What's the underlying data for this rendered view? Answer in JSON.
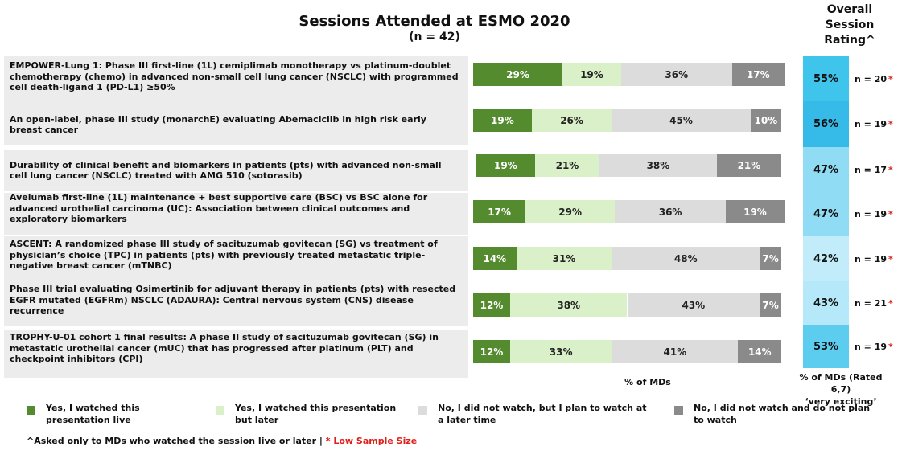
{
  "chart_data": {
    "type": "bar",
    "stacked": true,
    "orientation": "horizontal",
    "title": "Sessions Attended at ESMO 2020",
    "subtitle": "(n = 42)",
    "xlabel": "% of MDs",
    "categories": [
      "EMPOWER-Lung 1: Phase III first-line (1L) cemiplimab monotherapy vs platinum-doublet chemotherapy (chemo) in advanced non-small cell lung cancer (NSCLC) with programmed cell death-ligand 1 (PD-L1) ≥50%",
      "An open-label, phase III study (monarchE) evaluating Abemaciclib in high risk early breast cancer",
      "Durability of clinical benefit and biomarkers in patients (pts) with advanced non-small cell lung cancer (NSCLC) treated with AMG 510 (sotorasib)",
      "Avelumab first-line (1L) maintenance + best supportive care (BSC) vs BSC alone for advanced urothelial carcinoma (UC): Association between clinical outcomes and exploratory biomarkers",
      "ASCENT: A randomized phase III study of sacituzumab govitecan (SG) vs treatment of physician’s choice (TPC) in patients (pts) with previously treated metastatic triple-negative breast cancer (mTNBC)",
      "Phase III trial evaluating Osimertinib for adjuvant therapy in patients (pts) with resected EGFR mutated (EGFRm) NSCLC (ADAURA): Central nervous system (CNS) disease recurrence",
      "TROPHY-U-01 cohort 1 final results: A phase II study of sacituzumab govitecan (SG) in metastatic urothelial cancer (mUC) that has progressed after platinum (PLT) and checkpoint inhibitors (CPI)"
    ],
    "series": [
      {
        "name": "Yes, I watched this presentation live",
        "color": "#558b2f",
        "values": [
          29,
          19,
          19,
          17,
          14,
          12,
          12
        ]
      },
      {
        "name": "Yes, I watched this presentation but later",
        "color": "#d9f0c8",
        "values": [
          19,
          26,
          21,
          29,
          31,
          38,
          33
        ]
      },
      {
        "name": "No, I did not watch, but I plan to watch at a later time",
        "color": "#dcdcdc",
        "values": [
          36,
          45,
          38,
          36,
          48,
          43,
          41
        ]
      },
      {
        "name": "No, I did not watch and do not plan to watch",
        "color": "#8a8a8a",
        "values": [
          17,
          10,
          21,
          19,
          7,
          7,
          14
        ]
      }
    ],
    "value_suffix": "%",
    "rating": {
      "title": "Overall Session Rating^",
      "values": [
        "55%",
        "56%",
        "47%",
        "47%",
        "42%",
        "43%",
        "53%"
      ],
      "colors": [
        "#3fc4ec",
        "#36bbe8",
        "#8fdcf4",
        "#8fdcf4",
        "#c2ecf9",
        "#b5e8f8",
        "#5ccdef"
      ],
      "n_labels": [
        "n = 20",
        "n = 19",
        "n = 17",
        "n = 19",
        "n = 19",
        "n = 21",
        "n = 19"
      ],
      "low_sample_marker": "*",
      "axis_label_line1": "% of MDs (Rated 6,7)",
      "axis_label_line2": "‘very exciting’"
    }
  },
  "footnote": {
    "text": "^Asked only to MDs who watched the session live or later | ",
    "red": "* Low Sample Size"
  }
}
